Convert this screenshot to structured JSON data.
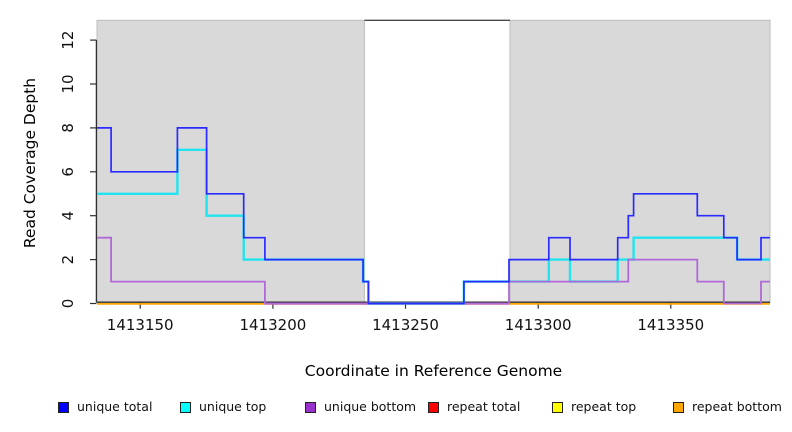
{
  "chart_data": {
    "type": "line",
    "subtype": "step-after",
    "title": "",
    "xlabel": "Coordinate in Reference Genome",
    "ylabel": "Read Coverage Depth",
    "xlim": [
      1413133.7,
      1413387.4
    ],
    "ylim": [
      0,
      13
    ],
    "x_ticks": [
      1413150,
      1413200,
      1413250,
      1413300,
      1413350
    ],
    "y_ticks": [
      0,
      2,
      4,
      6,
      8,
      10,
      12
    ],
    "grid": false,
    "legend_position": "bottom",
    "shaded_regions": {
      "fill": "#d9d9d9",
      "border": "#bdbdbd",
      "ranges": [
        {
          "x1": 1413133.7,
          "x2": 1413234.5
        },
        {
          "x1": 1413289.4,
          "x2": 1413387.4
        }
      ]
    },
    "gap_top_line": {
      "x1": 1413234.5,
      "x2": 1413289.4,
      "depth": 12.9,
      "color": "#4a4a4a"
    },
    "series": [
      {
        "name": "unique total",
        "color": "#2b2bff",
        "points": [
          [
            1413133.7,
            8
          ],
          [
            1413139,
            6
          ],
          [
            1413164,
            8
          ],
          [
            1413175,
            5
          ],
          [
            1413189,
            3
          ],
          [
            1413197,
            2
          ],
          [
            1413234,
            1
          ],
          [
            1413236,
            0
          ],
          [
            1413272,
            1
          ],
          [
            1413289,
            2
          ],
          [
            1413304,
            3
          ],
          [
            1413312,
            2
          ],
          [
            1413330,
            3
          ],
          [
            1413334,
            4
          ],
          [
            1413336,
            5
          ],
          [
            1413360,
            4
          ],
          [
            1413370,
            3
          ],
          [
            1413375,
            2
          ],
          [
            1413384,
            3
          ]
        ],
        "x_end": 1413387.4
      },
      {
        "name": "unique top",
        "color": "#21e4f0",
        "points": [
          [
            1413133.7,
            5
          ],
          [
            1413164,
            7
          ],
          [
            1413175,
            4
          ],
          [
            1413189,
            2
          ],
          [
            1413234,
            1
          ],
          [
            1413236,
            0
          ],
          [
            1413272,
            1
          ],
          [
            1413304,
            2
          ],
          [
            1413312,
            1
          ],
          [
            1413330,
            2
          ],
          [
            1413336,
            3
          ],
          [
            1413375,
            2
          ]
        ],
        "x_end": 1413387.4
      },
      {
        "name": "unique bottom",
        "color": "#b069d6",
        "points": [
          [
            1413133.7,
            3
          ],
          [
            1413139,
            1
          ],
          [
            1413197,
            0
          ],
          [
            1413289,
            1
          ],
          [
            1413334,
            2
          ],
          [
            1413360,
            1
          ],
          [
            1413370,
            0
          ],
          [
            1413384,
            1
          ]
        ],
        "x_end": 1413387.4
      },
      {
        "name": "repeat total",
        "color": "#ff0000",
        "points": [
          [
            1413133.7,
            0
          ]
        ],
        "x_end": 1413387.4
      },
      {
        "name": "repeat top",
        "color": "#ffff00",
        "points": [
          [
            1413133.7,
            0
          ]
        ],
        "x_end": 1413387.4
      },
      {
        "name": "repeat bottom",
        "color": "#ffa500",
        "points": [
          [
            1413133.7,
            0
          ]
        ],
        "x_end": 1413387.4
      }
    ],
    "zero_line_visible_segments": [
      {
        "x1": 1413133.7,
        "x2": 1413197,
        "color": "#ffa500"
      },
      {
        "x1": 1413197,
        "x2": 1413289,
        "color": "#d4608c"
      },
      {
        "x1": 1413289,
        "x2": 1413387.4,
        "color": "#ffa500"
      }
    ]
  },
  "legend": {
    "items": [
      {
        "label": "unique total",
        "fill": "#0000ff"
      },
      {
        "label": "unique top",
        "fill": "#00ffff"
      },
      {
        "label": "unique bottom",
        "fill": "#9932cc"
      },
      {
        "label": "repeat total",
        "fill": "#ff0000"
      },
      {
        "label": "repeat top",
        "fill": "#ffff00"
      },
      {
        "label": "repeat bottom",
        "fill": "#ffa500"
      }
    ]
  }
}
